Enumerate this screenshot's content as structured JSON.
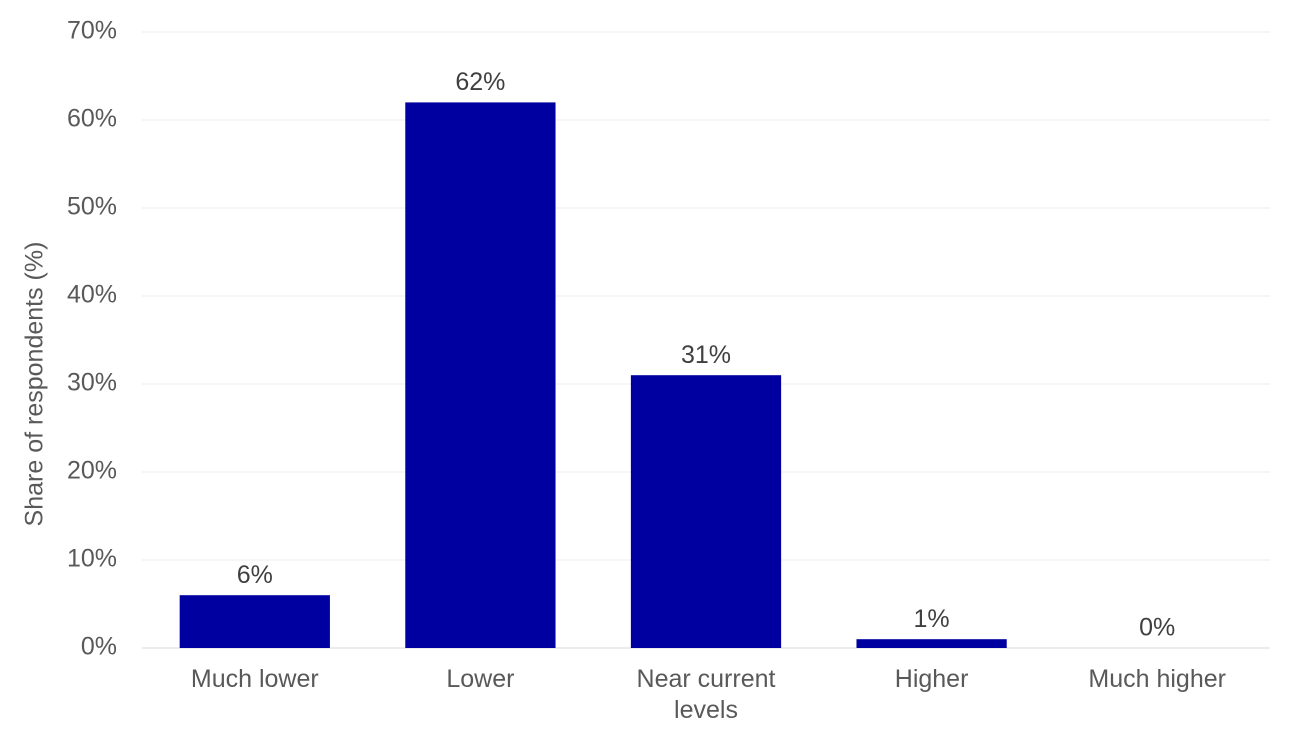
{
  "chart_data": {
    "type": "bar",
    "y_label": "Share of respondents (%)",
    "categories": [
      "Much lower",
      "Lower",
      "Near current levels",
      "Higher",
      "Much higher"
    ],
    "values": [
      6,
      62,
      31,
      1,
      0
    ],
    "value_labels": [
      "6%",
      "62%",
      "31%",
      "1%",
      "0%"
    ],
    "color": "#0000a0",
    "ylim": [
      0,
      70
    ],
    "yticks": [
      {
        "value": 0,
        "label": "0%"
      },
      {
        "value": 10,
        "label": "10%"
      },
      {
        "value": 20,
        "label": "20%"
      },
      {
        "value": 30,
        "label": "30%"
      },
      {
        "value": 40,
        "label": "40%"
      },
      {
        "value": 50,
        "label": "50%"
      },
      {
        "value": 60,
        "label": "60%"
      },
      {
        "value": 70,
        "label": "70%"
      }
    ],
    "grid": true
  }
}
